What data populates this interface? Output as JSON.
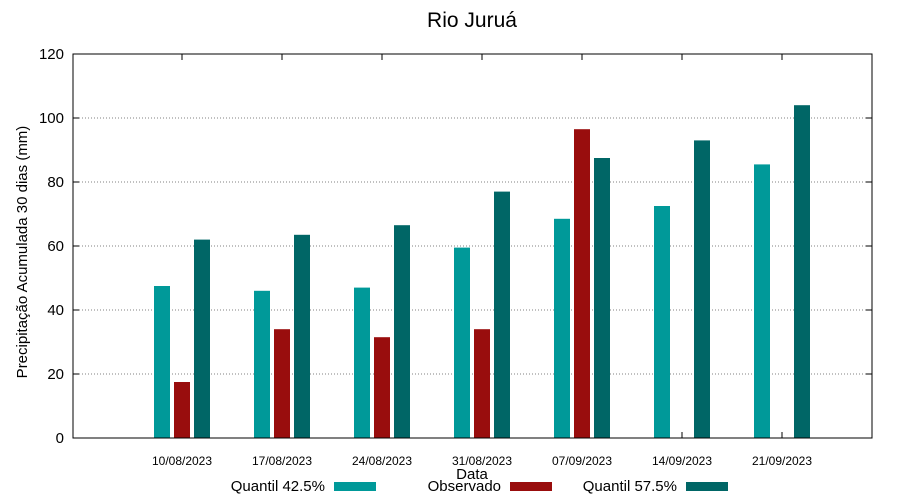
{
  "chart_data": {
    "type": "bar",
    "title": "Rio Juruá",
    "xlabel": "Data",
    "ylabel": "Precipitação Acumulada 30 dias (mm)",
    "ylim": [
      0,
      120
    ],
    "yticks": [
      0,
      20,
      40,
      60,
      80,
      100,
      120
    ],
    "grid": true,
    "legend_position": "bottom",
    "categories": [
      "10/08/2023",
      "17/08/2023",
      "24/08/2023",
      "31/08/2023",
      "07/09/2023",
      "14/09/2023",
      "21/09/2023"
    ],
    "series": [
      {
        "name": "Quantil 42.5%",
        "color": "#009999",
        "values": [
          47.5,
          46,
          47,
          59.5,
          68.5,
          72.5,
          85.5
        ]
      },
      {
        "name": "Observado",
        "color": "#990d0d",
        "values": [
          17.5,
          34,
          31.5,
          34,
          96.5,
          null,
          null
        ]
      },
      {
        "name": "Quantil 57.5%",
        "color": "#006666",
        "values": [
          62,
          63.5,
          66.5,
          77,
          87.5,
          93,
          104
        ]
      }
    ]
  }
}
